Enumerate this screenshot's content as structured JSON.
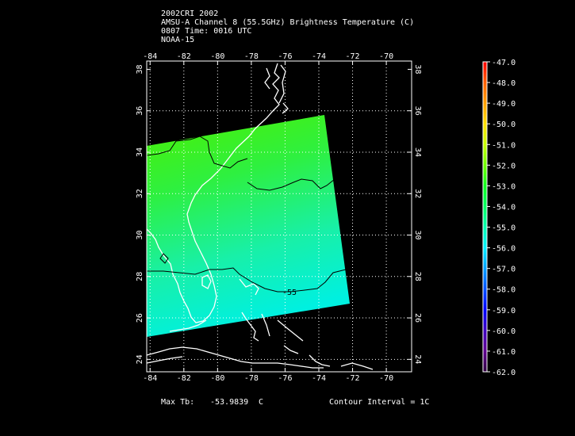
{
  "header": {
    "line1": "2002CRI 2002",
    "line2": "AMSU-A Channel 8 (55.5GHz) Brightness Temperature (C)",
    "line3": "0807 Time: 0016 UTC",
    "line4": "NOAA-15"
  },
  "map": {
    "lon_ticks": [
      "-84",
      "-82",
      "-80",
      "-78",
      "-76",
      "-74",
      "-72",
      "-70"
    ],
    "lat_ticks": [
      "36",
      "34",
      "32",
      "30",
      "28",
      "26",
      "24"
    ],
    "lat_top_label": "38",
    "lon_range": [
      -84.2,
      -68.5
    ],
    "lat_range": [
      23.4,
      38.4
    ],
    "contour_label": "-55",
    "colors": {
      "frame": "#ffffff",
      "grid": "#ffffff",
      "coast": "#ffffff",
      "contour": "#000000"
    }
  },
  "colorbar": {
    "labels": [
      "-47.0",
      "-48.0",
      "-49.0",
      "-50.0",
      "-51.0",
      "-52.0",
      "-53.0",
      "-54.0",
      "-55.0",
      "-56.0",
      "-57.0",
      "-58.0",
      "-59.0",
      "-60.0",
      "-61.0",
      "-62.0"
    ],
    "colors": [
      "#ff0000",
      "#ff6000",
      "#ffa000",
      "#ffe000",
      "#c8ff00",
      "#70ff00",
      "#10ff20",
      "#00ff60",
      "#00ffb0",
      "#00f0ff",
      "#00a0ff",
      "#0050ff",
      "#0000ff",
      "#4000c0",
      "#600090",
      "#300040"
    ]
  },
  "footer": {
    "max_label": "Max Tb:",
    "max_value": "-53.9839",
    "max_unit": "C",
    "contour_interval": "Contour Interval = 1C"
  }
}
